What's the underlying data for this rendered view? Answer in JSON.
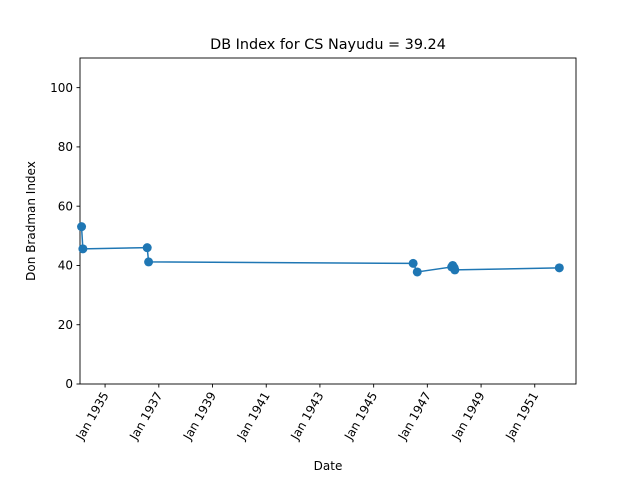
{
  "chart_data": {
    "type": "line",
    "title": "DB Index for CS Nayudu = 39.24",
    "xlabel": "Date",
    "ylabel": "Don Bradman Index",
    "ylim": [
      0,
      110
    ],
    "xlim": [
      "1934-01-25",
      "1952-07-15"
    ],
    "yticks": [
      0,
      20,
      40,
      60,
      80,
      100
    ],
    "xticks": [
      {
        "date": "1935-01-01",
        "label": "Jan 1935"
      },
      {
        "date": "1937-01-01",
        "label": "Jan 1937"
      },
      {
        "date": "1939-01-01",
        "label": "Jan 1939"
      },
      {
        "date": "1941-01-01",
        "label": "Jan 1941"
      },
      {
        "date": "1943-01-01",
        "label": "Jan 1943"
      },
      {
        "date": "1945-01-01",
        "label": "Jan 1945"
      },
      {
        "date": "1947-01-01",
        "label": "Jan 1947"
      },
      {
        "date": "1949-01-01",
        "label": "Jan 1949"
      },
      {
        "date": "1951-01-01",
        "label": "Jan 1951"
      }
    ],
    "grid": false,
    "series": [
      {
        "color": "#1f77b4",
        "points": [
          {
            "x": "1934-02-15",
            "y": 53.1
          },
          {
            "x": "1934-03-05",
            "y": 45.6
          },
          {
            "x": "1936-07-27",
            "y": 46.0
          },
          {
            "x": "1936-08-15",
            "y": 41.2
          },
          {
            "x": "1946-06-22",
            "y": 40.7
          },
          {
            "x": "1946-08-17",
            "y": 37.8
          },
          {
            "x": "1947-11-28",
            "y": 39.5
          },
          {
            "x": "1947-12-12",
            "y": 40.0
          },
          {
            "x": "1948-01-01",
            "y": 39.2
          },
          {
            "x": "1948-01-10",
            "y": 38.5
          },
          {
            "x": "1951-12-01",
            "y": 39.2
          }
        ]
      }
    ]
  }
}
